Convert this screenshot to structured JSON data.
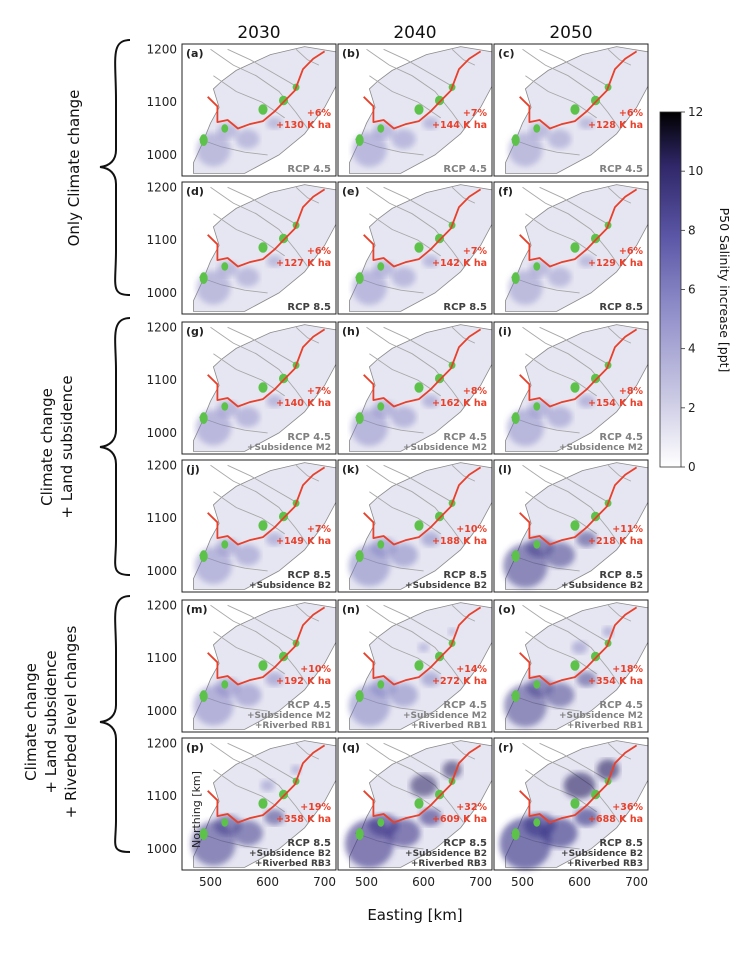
{
  "chart_data": {
    "type": "heatmap",
    "column_titles": [
      "2030",
      "2040",
      "2050"
    ],
    "row_groups": [
      [
        "Only Climate change"
      ],
      [
        "Climate change",
        "+ Land subsidence"
      ],
      [
        "Climate change",
        "+ Land subsidence",
        "+ Riverbed level changes"
      ]
    ],
    "xlabel": "Easting [km]",
    "ylabel": "Northing [km]",
    "xticks": [
      500,
      600,
      700
    ],
    "yticks": [
      1000,
      1100,
      1200
    ],
    "xlim": [
      450,
      720
    ],
    "ylim": [
      960,
      1210
    ],
    "colorbar": {
      "label": "P50 Salinity increase [ppt]",
      "ticks": [
        0,
        2,
        4,
        6,
        8,
        10,
        12
      ],
      "range": [
        0,
        12
      ],
      "colormap": [
        "#ffffff",
        "#c9c8e3",
        "#8e8cc8",
        "#5b56a6",
        "#2f2768",
        "#000000"
      ]
    },
    "colors": {
      "boundary": "#e8402a",
      "green_area": "#5cc24a",
      "text_gray": "#808080",
      "text_dark": "#404040"
    },
    "panels": [
      {
        "letter": "(a)",
        "year": "2030",
        "pct": "+6%",
        "area": "+130 K ha",
        "lines": [
          "RCP 4.5"
        ],
        "intensity": 0.35,
        "spread": 0.0
      },
      {
        "letter": "(b)",
        "year": "2040",
        "pct": "+7%",
        "area": "+144 K ha",
        "lines": [
          "RCP 4.5"
        ],
        "intensity": 0.38,
        "spread": 0.05
      },
      {
        "letter": "(c)",
        "year": "2050",
        "pct": "+6%",
        "area": "+128 K ha",
        "lines": [
          "RCP 4.5"
        ],
        "intensity": 0.35,
        "spread": 0.0
      },
      {
        "letter": "(d)",
        "year": "2030",
        "pct": "+6%",
        "area": "+127 K ha",
        "lines": [
          "RCP 8.5"
        ],
        "intensity": 0.35,
        "spread": 0.0
      },
      {
        "letter": "(e)",
        "year": "2040",
        "pct": "+7%",
        "area": "+142 K ha",
        "lines": [
          "RCP 8.5"
        ],
        "intensity": 0.38,
        "spread": 0.05
      },
      {
        "letter": "(f)",
        "year": "2050",
        "pct": "+6%",
        "area": "+129 K ha",
        "lines": [
          "RCP 8.5"
        ],
        "intensity": 0.36,
        "spread": 0.0
      },
      {
        "letter": "(g)",
        "year": "2030",
        "pct": "+7%",
        "area": "+140 K ha",
        "lines": [
          "RCP 4.5",
          "+Subsidence M2"
        ],
        "intensity": 0.4,
        "spread": 0.05
      },
      {
        "letter": "(h)",
        "year": "2040",
        "pct": "+8%",
        "area": "+162 K ha",
        "lines": [
          "RCP 4.5",
          "+Subsidence M2"
        ],
        "intensity": 0.45,
        "spread": 0.1
      },
      {
        "letter": "(i)",
        "year": "2050",
        "pct": "+8%",
        "area": "+154 K ha",
        "lines": [
          "RCP 4.5",
          "+Subsidence M2"
        ],
        "intensity": 0.45,
        "spread": 0.1
      },
      {
        "letter": "(j)",
        "year": "2030",
        "pct": "+7%",
        "area": "+149 K ha",
        "lines": [
          "RCP 8.5",
          "+Subsidence B2"
        ],
        "intensity": 0.45,
        "spread": 0.05
      },
      {
        "letter": "(k)",
        "year": "2040",
        "pct": "+10%",
        "area": "+188 K ha",
        "lines": [
          "RCP 8.5",
          "+Subsidence B2"
        ],
        "intensity": 0.6,
        "spread": 0.15
      },
      {
        "letter": "(l)",
        "year": "2050",
        "pct": "+11%",
        "area": "+218 K ha",
        "lines": [
          "RCP 8.5",
          "+Subsidence B2"
        ],
        "intensity": 0.7,
        "spread": 0.2
      },
      {
        "letter": "(m)",
        "year": "2030",
        "pct": "+10%",
        "area": "+192 K ha",
        "lines": [
          "RCP 4.5",
          "+Subsidence M2",
          "+Riverbed RB1"
        ],
        "intensity": 0.55,
        "spread": 0.2
      },
      {
        "letter": "(n)",
        "year": "2040",
        "pct": "+14%",
        "area": "+272 K ha",
        "lines": [
          "RCP 4.5",
          "+Subsidence M2",
          "+Riverbed RB1"
        ],
        "intensity": 0.6,
        "spread": 0.35
      },
      {
        "letter": "(o)",
        "year": "2050",
        "pct": "+18%",
        "area": "+354 K ha",
        "lines": [
          "RCP 4.5",
          "+Subsidence M2",
          "+Riverbed RB1"
        ],
        "intensity": 0.65,
        "spread": 0.5
      },
      {
        "letter": "(p)",
        "year": "2030",
        "pct": "+19%",
        "area": "+358 K ha",
        "lines": [
          "RCP 8.5",
          "+Subsidence B2",
          "+Riverbed RB3"
        ],
        "intensity": 0.7,
        "spread": 0.45
      },
      {
        "letter": "(q)",
        "year": "2040",
        "pct": "+32%",
        "area": "+609 K ha",
        "lines": [
          "RCP 8.5",
          "+Subsidence B2",
          "+Riverbed RB3"
        ],
        "intensity": 0.85,
        "spread": 0.85
      },
      {
        "letter": "(r)",
        "year": "2050",
        "pct": "+36%",
        "area": "+688 K ha",
        "lines": [
          "RCP 8.5",
          "+Subsidence B2",
          "+Riverbed RB3"
        ],
        "intensity": 0.95,
        "spread": 1.0
      }
    ]
  }
}
